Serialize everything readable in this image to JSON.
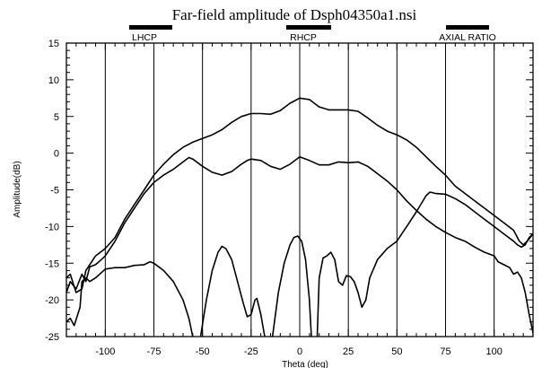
{
  "chart_data": {
    "type": "line",
    "title": "Far-field amplitude of Dsph04350a1.nsi",
    "xlabel": "Theta (deg)",
    "ylabel": "Amplitude(dB)",
    "xlim": [
      -120,
      120
    ],
    "ylim": [
      -25,
      15
    ],
    "x_ticks": [
      -100,
      -75,
      -50,
      -25,
      0,
      25,
      50,
      75,
      100
    ],
    "y_ticks": [
      15,
      10,
      5,
      0,
      -5,
      -10,
      -15,
      -20,
      -25
    ],
    "grid": "vertical",
    "legend_position": "top",
    "legend": [
      "LHCP",
      "RHCP",
      "AXIAL RATIO"
    ],
    "line_color": "#000000",
    "series": [
      {
        "name": "RHCP",
        "points": [
          [
            -120,
            -19
          ],
          [
            -118,
            -17.5
          ],
          [
            -115,
            -18.5
          ],
          [
            -112,
            -16.5
          ],
          [
            -110,
            -17.5
          ],
          [
            -108,
            -15.5
          ],
          [
            -105,
            -15.2
          ],
          [
            -102,
            -14.5
          ],
          [
            -100,
            -14
          ],
          [
            -95,
            -12
          ],
          [
            -90,
            -9.5
          ],
          [
            -85,
            -7.5
          ],
          [
            -80,
            -5.5
          ],
          [
            -75,
            -4
          ],
          [
            -70,
            -3
          ],
          [
            -65,
            -2.2
          ],
          [
            -60,
            -1.2
          ],
          [
            -57,
            -0.6
          ],
          [
            -55,
            -0.8
          ],
          [
            -50,
            -1.8
          ],
          [
            -45,
            -2.6
          ],
          [
            -40,
            -3
          ],
          [
            -35,
            -2.5
          ],
          [
            -30,
            -1.5
          ],
          [
            -27,
            -1
          ],
          [
            -25,
            -0.8
          ],
          [
            -20,
            -1
          ],
          [
            -15,
            -1.8
          ],
          [
            -10,
            -2.2
          ],
          [
            -5,
            -1.5
          ],
          [
            0,
            -0.5
          ],
          [
            5,
            -1
          ],
          [
            10,
            -1.6
          ],
          [
            15,
            -1.6
          ],
          [
            20,
            -1.2
          ],
          [
            25,
            -1.3
          ],
          [
            30,
            -1.2
          ],
          [
            35,
            -1.8
          ],
          [
            40,
            -2.8
          ],
          [
            45,
            -3.8
          ],
          [
            50,
            -5
          ],
          [
            55,
            -6.5
          ],
          [
            60,
            -7.8
          ],
          [
            65,
            -9
          ],
          [
            70,
            -10
          ],
          [
            75,
            -10.8
          ],
          [
            80,
            -11.5
          ],
          [
            85,
            -12
          ],
          [
            90,
            -12.8
          ],
          [
            95,
            -13.5
          ],
          [
            100,
            -14
          ],
          [
            102,
            -14.8
          ],
          [
            105,
            -15.2
          ],
          [
            108,
            -15.6
          ],
          [
            110,
            -16.5
          ],
          [
            112,
            -16.2
          ],
          [
            114,
            -17
          ],
          [
            116,
            -19
          ],
          [
            118,
            -22
          ],
          [
            120,
            -24.5
          ]
        ]
      },
      {
        "name": "LHCP",
        "points": [
          [
            -120,
            -17
          ],
          [
            -118,
            -16.5
          ],
          [
            -115,
            -19
          ],
          [
            -112,
            -18.5
          ],
          [
            -110,
            -16
          ],
          [
            -105,
            -14
          ],
          [
            -100,
            -13
          ],
          [
            -95,
            -11.5
          ],
          [
            -90,
            -9
          ],
          [
            -85,
            -7
          ],
          [
            -80,
            -5
          ],
          [
            -75,
            -3
          ],
          [
            -70,
            -1.5
          ],
          [
            -65,
            -0.2
          ],
          [
            -60,
            0.8
          ],
          [
            -55,
            1.5
          ],
          [
            -50,
            2
          ],
          [
            -45,
            2.5
          ],
          [
            -40,
            3.2
          ],
          [
            -35,
            4.2
          ],
          [
            -30,
            5
          ],
          [
            -25,
            5.4
          ],
          [
            -20,
            5.4
          ],
          [
            -15,
            5.3
          ],
          [
            -10,
            5.8
          ],
          [
            -5,
            6.8
          ],
          [
            0,
            7.5
          ],
          [
            5,
            7.3
          ],
          [
            10,
            6.3
          ],
          [
            15,
            5.9
          ],
          [
            20,
            5.9
          ],
          [
            25,
            5.9
          ],
          [
            30,
            5.7
          ],
          [
            35,
            4.8
          ],
          [
            40,
            3.8
          ],
          [
            45,
            3
          ],
          [
            50,
            2.5
          ],
          [
            55,
            1.8
          ],
          [
            60,
            0.8
          ],
          [
            65,
            -0.5
          ],
          [
            70,
            -1.8
          ],
          [
            75,
            -3
          ],
          [
            80,
            -4.5
          ],
          [
            85,
            -5.5
          ],
          [
            90,
            -6.5
          ],
          [
            95,
            -7.5
          ],
          [
            100,
            -8.5
          ],
          [
            105,
            -9.5
          ],
          [
            110,
            -10.5
          ],
          [
            113,
            -12
          ],
          [
            115,
            -12.5
          ],
          [
            117,
            -12
          ],
          [
            120,
            -11
          ]
        ]
      },
      {
        "name": "AXIAL RATIO",
        "points": [
          [
            -120,
            -23
          ],
          [
            -118,
            -22.5
          ],
          [
            -116,
            -23.5
          ],
          [
            -113,
            -21
          ],
          [
            -112,
            -17.5
          ],
          [
            -110,
            -17
          ],
          [
            -108,
            -17.5
          ],
          [
            -105,
            -17
          ],
          [
            -100,
            -15.8
          ],
          [
            -95,
            -15.6
          ],
          [
            -90,
            -15.6
          ],
          [
            -85,
            -15.3
          ],
          [
            -80,
            -15.2
          ],
          [
            -77,
            -14.8
          ],
          [
            -75,
            -15
          ],
          [
            -70,
            -16
          ],
          [
            -65,
            -17.5
          ],
          [
            -60,
            -20
          ],
          [
            -57,
            -22.5
          ],
          [
            -55,
            -25
          ],
          [
            -53,
            -27
          ],
          [
            -51,
            -25
          ],
          [
            -48,
            -20
          ],
          [
            -45,
            -16
          ],
          [
            -42,
            -13.5
          ],
          [
            -40,
            -12.7
          ],
          [
            -38,
            -13
          ],
          [
            -35,
            -14.5
          ],
          [
            -32,
            -17.5
          ],
          [
            -29,
            -20.5
          ],
          [
            -27,
            -22.3
          ],
          [
            -25,
            -22
          ],
          [
            -23,
            -20
          ],
          [
            -22,
            -19.8
          ],
          [
            -20,
            -22
          ],
          [
            -18,
            -25
          ],
          [
            -16,
            -27
          ],
          [
            -14,
            -25
          ],
          [
            -11,
            -19
          ],
          [
            -8,
            -15
          ],
          [
            -5,
            -12.5
          ],
          [
            -3,
            -11.5
          ],
          [
            -1,
            -11.3
          ],
          [
            1,
            -12
          ],
          [
            3,
            -14.5
          ],
          [
            5,
            -20
          ],
          [
            6,
            -25
          ],
          [
            7,
            -27
          ],
          [
            9,
            -25
          ],
          [
            10,
            -17
          ],
          [
            12,
            -14.3
          ],
          [
            14,
            -14
          ],
          [
            16,
            -13.5
          ],
          [
            18,
            -14.5
          ],
          [
            20,
            -17.5
          ],
          [
            22,
            -18
          ],
          [
            24,
            -16.7
          ],
          [
            26,
            -16.8
          ],
          [
            28,
            -17.5
          ],
          [
            30,
            -19
          ],
          [
            32,
            -21
          ],
          [
            34,
            -20
          ],
          [
            36,
            -17
          ],
          [
            40,
            -14.5
          ],
          [
            45,
            -13
          ],
          [
            50,
            -12
          ],
          [
            55,
            -10
          ],
          [
            60,
            -8
          ],
          [
            65,
            -5.8
          ],
          [
            67,
            -5.3
          ],
          [
            70,
            -5.5
          ],
          [
            75,
            -5.6
          ],
          [
            80,
            -6.2
          ],
          [
            85,
            -7
          ],
          [
            90,
            -8
          ],
          [
            95,
            -9
          ],
          [
            100,
            -10
          ],
          [
            105,
            -11
          ],
          [
            110,
            -12
          ],
          [
            112,
            -12.5
          ],
          [
            114,
            -12.8
          ],
          [
            116,
            -12.5
          ],
          [
            118,
            -11.5
          ],
          [
            120,
            -11
          ]
        ]
      }
    ]
  }
}
